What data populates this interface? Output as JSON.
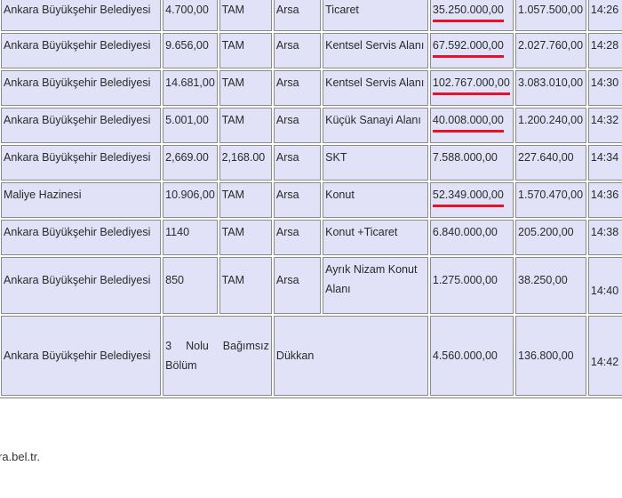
{
  "table": {
    "rows": [
      {
        "owner": "Ankara Büyükşehir Belediyesi",
        "area": "4.700,00",
        "share": "TAM",
        "type": "Arsa",
        "zoning": "Ticaret",
        "price": "35.250.000,00",
        "price_marked": true,
        "deposit": "1.057.500,00",
        "time": "14:26"
      },
      {
        "owner": "Ankara Büyükşehir Belediyesi",
        "area": "9.656,00",
        "share": "TAM",
        "type": "Arsa",
        "zoning": "Kentsel Servis Alanı",
        "price": "67.592.000,00",
        "price_marked": true,
        "deposit": "2.027.760,00",
        "time": "14:28"
      },
      {
        "owner": "Ankara Büyükşehir Belediyesi",
        "area": "14.681,00",
        "share": "TAM",
        "type": "Arsa",
        "zoning": "Kentsel Servis Alanı",
        "price": "102.767.000,00",
        "price_marked": true,
        "deposit": "3.083.010,00",
        "time": "14:30"
      },
      {
        "owner": "Ankara Büyükşehir Belediyesi",
        "area": "5.001,00",
        "share": "TAM",
        "type": "Arsa",
        "zoning": "Küçük Sanayi Alanı",
        "price": "40.008.000,00",
        "price_marked": true,
        "deposit": "1.200.240,00",
        "time": "14:32"
      },
      {
        "owner": "Ankara Büyükşehir Belediyesi",
        "area": "2,669.00",
        "share": "2,168.00",
        "type": "Arsa",
        "zoning": "SKT",
        "price": "7.588.000,00",
        "price_marked": false,
        "deposit": "227.640,00",
        "time": "14:34"
      },
      {
        "owner": "Maliye Hazinesi",
        "area": "10.906,00",
        "share": "TAM",
        "type": "Arsa",
        "zoning": "Konut",
        "price": "52.349.000,00",
        "price_marked": true,
        "deposit": "1.570.470,00",
        "time": "14:36"
      },
      {
        "owner": "Ankara Büyükşehir Belediyesi",
        "area": "1140",
        "share": "TAM",
        "type": "Arsa",
        "zoning": "Konut +Ticaret",
        "price": "6.840.000,00",
        "price_marked": false,
        "deposit": "205.200,00",
        "time": "14:38"
      },
      {
        "owner": "Ankara Büyükşehir Belediyesi",
        "area": "850",
        "share": "TAM",
        "type": "Arsa",
        "zoning": "Ayrık Nizam Konut Alanı",
        "price": "1.275.000,00",
        "price_marked": false,
        "deposit": "38.250,00",
        "time": "14:40"
      }
    ],
    "last_row": {
      "owner": "Ankara Büyükşehir Belediyesi",
      "description": "3 Nolu Bağımsız Bölüm",
      "type": "Dükkan",
      "price": "4.560.000,00",
      "deposit": "136.800,00",
      "time": "14:42"
    }
  },
  "footer": {
    "text": "ra.bel.tr."
  },
  "colors": {
    "cell_bg": "#e1e1f7",
    "highlight": "#e8102a"
  }
}
